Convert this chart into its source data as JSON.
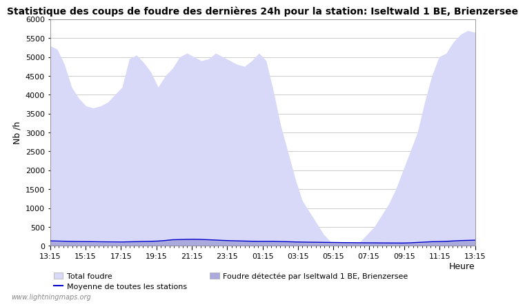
{
  "title": "Statistique des coups de foudre des dernières 24h pour la station: Iseltwald 1 BE, Brienzersee",
  "ylabel": "Nb /h",
  "xlabel": "Heure",
  "xlim_labels": [
    "13:15",
    "15:15",
    "17:15",
    "19:15",
    "21:15",
    "23:15",
    "01:15",
    "03:15",
    "05:15",
    "07:15",
    "09:15",
    "11:15",
    "13:15"
  ],
  "ylim": [
    0,
    6000
  ],
  "yticks": [
    0,
    500,
    1000,
    1500,
    2000,
    2500,
    3000,
    3500,
    4000,
    4500,
    5000,
    5500,
    6000
  ],
  "fill_color_light": "#d8d8f8",
  "fill_color_dark": "#aaaadd",
  "line_color": "#0000cc",
  "background_color": "#ffffff",
  "grid_color": "#cccccc",
  "title_fontsize": 10,
  "axis_fontsize": 9,
  "tick_fontsize": 8,
  "watermark": "www.lightningmaps.org",
  "legend_labels": [
    "Total foudre",
    "Moyenne de toutes les stations",
    "Foudre détectée par Iseltwald 1 BE, Brienzersee"
  ],
  "total_foudre": [
    5300,
    5200,
    4800,
    4200,
    3900,
    3700,
    3650,
    3700,
    3800,
    4000,
    4200,
    4950,
    5050,
    4850,
    4600,
    4200,
    4500,
    4700,
    5000,
    5100,
    5000,
    4900,
    4950,
    5100,
    5000,
    4900,
    4800,
    4750,
    4900,
    5100,
    4900,
    4100,
    3200,
    2500,
    1800,
    1200,
    900,
    600,
    300,
    100,
    50,
    0,
    50,
    100,
    300,
    500,
    800,
    1100,
    1500,
    2000,
    2500,
    3000,
    3800,
    4500,
    5000,
    5100,
    5400,
    5600,
    5700,
    5650
  ],
  "local_foudre": [
    120,
    110,
    110,
    110,
    100,
    100,
    95,
    90,
    90,
    90,
    90,
    100,
    110,
    115,
    120,
    130,
    150,
    170,
    180,
    185,
    185,
    180,
    170,
    160,
    150,
    140,
    135,
    130,
    125,
    120,
    120,
    120,
    115,
    110,
    105,
    100,
    98,
    95,
    93,
    90,
    88,
    85,
    83,
    82,
    80,
    80,
    78,
    77,
    76,
    75,
    80,
    90,
    100,
    110,
    115,
    120,
    130,
    140,
    145,
    150
  ],
  "mean_foudre": [
    130,
    125,
    120,
    115,
    112,
    110,
    108,
    105,
    103,
    102,
    100,
    105,
    110,
    115,
    118,
    125,
    140,
    160,
    165,
    170,
    172,
    168,
    160,
    152,
    142,
    135,
    130,
    125,
    120,
    118,
    118,
    118,
    112,
    108,
    102,
    98,
    95,
    93,
    90,
    88,
    86,
    83,
    82,
    80,
    78,
    78,
    76,
    75,
    74,
    73,
    78,
    88,
    98,
    108,
    112,
    118,
    128,
    138,
    143,
    148
  ]
}
